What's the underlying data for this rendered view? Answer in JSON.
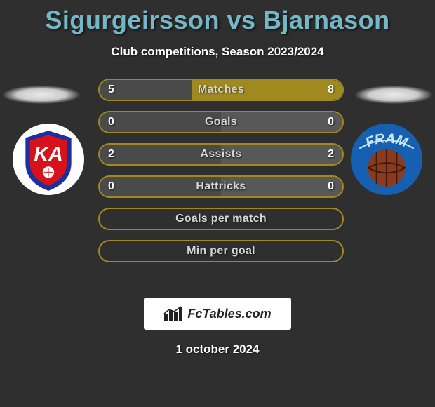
{
  "title": "Sigurgeirsson vs Bjarnason",
  "subtitle": "Club competitions, Season 2023/2024",
  "date_line": "1 october 2024",
  "logo_text": "FcTables.com",
  "colors": {
    "title": "#74b8c8",
    "background": "#2f2f2f",
    "bar_border": "#a08a1f",
    "fill_accent": "#a08a1f",
    "fill_neutral_a": "#4a4a4a",
    "fill_neutral_b": "#585858",
    "text": "#ffffff"
  },
  "badges": {
    "left": {
      "name": "KA",
      "bg": "#ffffff",
      "shield_outer": "#1b2fa0",
      "shield_inner": "#d8121a",
      "text": "KA",
      "text_color": "#ffffff"
    },
    "right": {
      "name": "FRAM",
      "bg": "#1560b0",
      "text": "FRAM",
      "text_color": "#c7e7ff",
      "ball_color": "#8b3a1e",
      "ball_lines": "#3b1a0c"
    }
  },
  "rows": [
    {
      "label": "Matches",
      "left_val": "5",
      "right_val": "8",
      "left_pct": 38,
      "right_pct": 62,
      "left_color": "#4a4a4a",
      "right_color": "#a08a1f"
    },
    {
      "label": "Goals",
      "left_val": "0",
      "right_val": "0",
      "left_pct": 50,
      "right_pct": 50,
      "left_color": "#4a4a4a",
      "right_color": "#585858"
    },
    {
      "label": "Assists",
      "left_val": "2",
      "right_val": "2",
      "left_pct": 50,
      "right_pct": 50,
      "left_color": "#4a4a4a",
      "right_color": "#585858"
    },
    {
      "label": "Hattricks",
      "left_val": "0",
      "right_val": "0",
      "left_pct": 50,
      "right_pct": 50,
      "left_color": "#4a4a4a",
      "right_color": "#585858"
    },
    {
      "label": "Goals per match",
      "left_val": "",
      "right_val": "",
      "left_pct": 0,
      "right_pct": 0,
      "left_color": "",
      "right_color": ""
    },
    {
      "label": "Min per goal",
      "left_val": "",
      "right_val": "",
      "left_pct": 0,
      "right_pct": 0,
      "left_color": "",
      "right_color": ""
    }
  ]
}
